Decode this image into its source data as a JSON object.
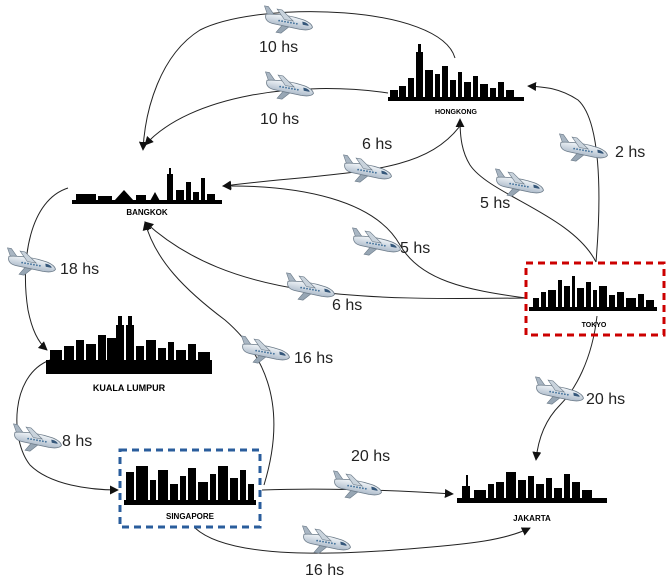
{
  "cities": [
    {
      "id": "hongkong",
      "label": "HONGKONG"
    },
    {
      "id": "bangkok",
      "label": "BANGKOK"
    },
    {
      "id": "tokyo",
      "label": "TOKYO",
      "highlight_color": "#cc0000"
    },
    {
      "id": "kuala_lumpur",
      "label": "KUALA LUMPUR"
    },
    {
      "id": "singapore",
      "label": "SINGAPORE",
      "highlight_color": "#2a5d9c"
    },
    {
      "id": "jakarta",
      "label": "JAKARTA"
    }
  ],
  "routes": [
    {
      "from": "hongkong",
      "to": "bangkok",
      "duration": "10 hs"
    },
    {
      "from": "hongkong",
      "to": "bangkok",
      "duration": "10 hs"
    },
    {
      "from": "hongkong",
      "to": "bangkok",
      "duration": "6 hs"
    },
    {
      "from": "tokyo",
      "to": "hongkong",
      "duration": "2 hs"
    },
    {
      "from": "tokyo",
      "to": "hongkong",
      "duration": "5 hs"
    },
    {
      "from": "tokyo",
      "to": "bangkok",
      "duration": "5 hs"
    },
    {
      "from": "tokyo",
      "to": "bangkok",
      "duration": "6 hs"
    },
    {
      "from": "bangkok",
      "to": "kuala_lumpur",
      "duration": "18 hs"
    },
    {
      "from": "singapore",
      "to": "bangkok",
      "duration": "16 hs"
    },
    {
      "from": "tokyo",
      "to": "jakarta",
      "duration": "20 hs"
    },
    {
      "from": "kuala_lumpur",
      "to": "singapore",
      "duration": "8 hs"
    },
    {
      "from": "singapore",
      "to": "jakarta",
      "duration": "20 hs"
    },
    {
      "from": "singapore",
      "to": "jakarta",
      "duration": "16 hs"
    }
  ],
  "icons": {
    "route": "airplane-icon",
    "city": "city-skyline-icon"
  }
}
